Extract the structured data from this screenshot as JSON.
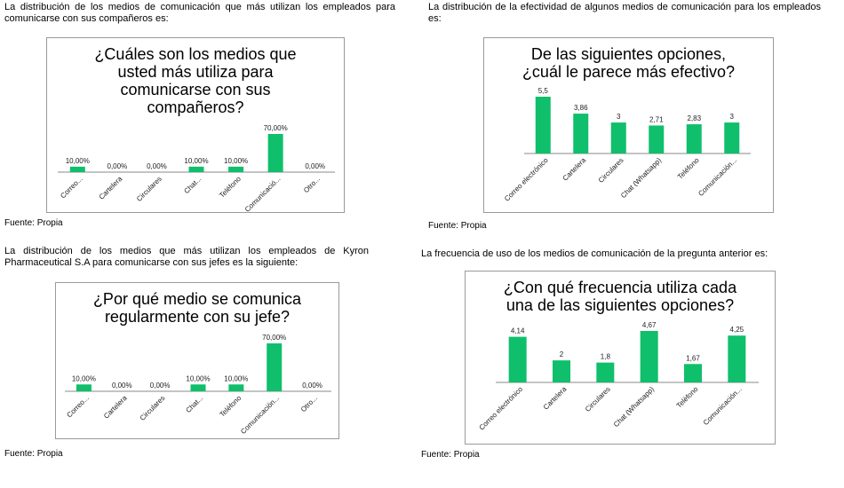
{
  "colors": {
    "bar": "#0fbf6b",
    "axis": "#8a8a8a"
  },
  "charts": [
    {
      "intro": "La distribución de los medios de comunicación que más utilizan los empleados para comunicarse con sus compañeros es:",
      "title_lines": [
        "¿Cuáles son los medios que",
        "usted más utiliza para",
        "comunicarse con sus",
        "compañeros?"
      ],
      "source": "Fuente: Propia"
    },
    {
      "intro": "La distribución de la efectividad de algunos medios de comunicación para los empleados es:",
      "title_lines": [
        "De las siguientes opciones,",
        "¿cuál le parece más efectivo?"
      ],
      "source": "Fuente: Propia"
    },
    {
      "intro": "La distribución de los medios que más utilizan los empleados de Kyron Pharmaceutical S.A para comunicarse con sus jefes es la siguiente:",
      "title_lines": [
        "¿Por qué medio se comunica",
        "regularmente con su jefe?"
      ],
      "source": "Fuente: Propia"
    },
    {
      "intro": "La frecuencia de uso de los medios de comunicación de la pregunta anterior es:",
      "title_lines": [
        "¿Con qué frecuencia utiliza cada",
        "una de las siguientes opciones?"
      ],
      "source": "Fuente: Propia"
    }
  ],
  "chart_data": [
    {
      "type": "bar",
      "title": "¿Cuáles son los medios que usted más utiliza para comunicarse con sus compañeros?",
      "categories": [
        "Correo...",
        "Cartelera",
        "Circulares",
        "Chat...",
        "Teléfono",
        "Comunicació...",
        "Otro..."
      ],
      "values": [
        10,
        0,
        0,
        10,
        10,
        70,
        0
      ],
      "value_labels": [
        "10,00%",
        "0,00%",
        "0,00%",
        "10,00%",
        "10,00%",
        "70,00%",
        "0,00%"
      ],
      "ylim": [
        0,
        70
      ]
    },
    {
      "type": "bar",
      "title": "De las siguientes opciones, ¿cuál le parece más efectivo?",
      "categories": [
        "Correo electrónico",
        "Cartelera",
        "Circulares",
        "Chat (Whatsapp)",
        "Teléfono",
        "Comunicación..."
      ],
      "values": [
        5.5,
        3.86,
        3,
        2.71,
        2.83,
        3
      ],
      "value_labels": [
        "5,5",
        "3,86",
        "3",
        "2,71",
        "2,83",
        "3"
      ],
      "ylim": [
        0,
        5.5
      ]
    },
    {
      "type": "bar",
      "title": "¿Por qué medio se comunica regularmente con su jefe?",
      "categories": [
        "Correo...",
        "Cartelera",
        "Circulares",
        "Chat...",
        "Teléfono",
        "Comunicación...",
        "Otro..."
      ],
      "values": [
        10,
        0,
        0,
        10,
        10,
        70,
        0
      ],
      "value_labels": [
        "10,00%",
        "0,00%",
        "0,00%",
        "10,00%",
        "10,00%",
        "70,00%",
        "0,00%"
      ],
      "ylim": [
        0,
        70
      ]
    },
    {
      "type": "bar",
      "title": "¿Con qué frecuencia utiliza cada una de las siguientes opciones?",
      "categories": [
        "Correo electrónico",
        "Cartelera",
        "Circulares",
        "Chat (Whatsapp)",
        "Teléfono",
        "Comunicación..."
      ],
      "values": [
        4.14,
        2,
        1.8,
        4.67,
        1.67,
        4.25
      ],
      "value_labels": [
        "4,14",
        "2",
        "1,8",
        "4,67",
        "1,67",
        "4,25"
      ],
      "ylim": [
        0,
        4.67
      ]
    }
  ]
}
